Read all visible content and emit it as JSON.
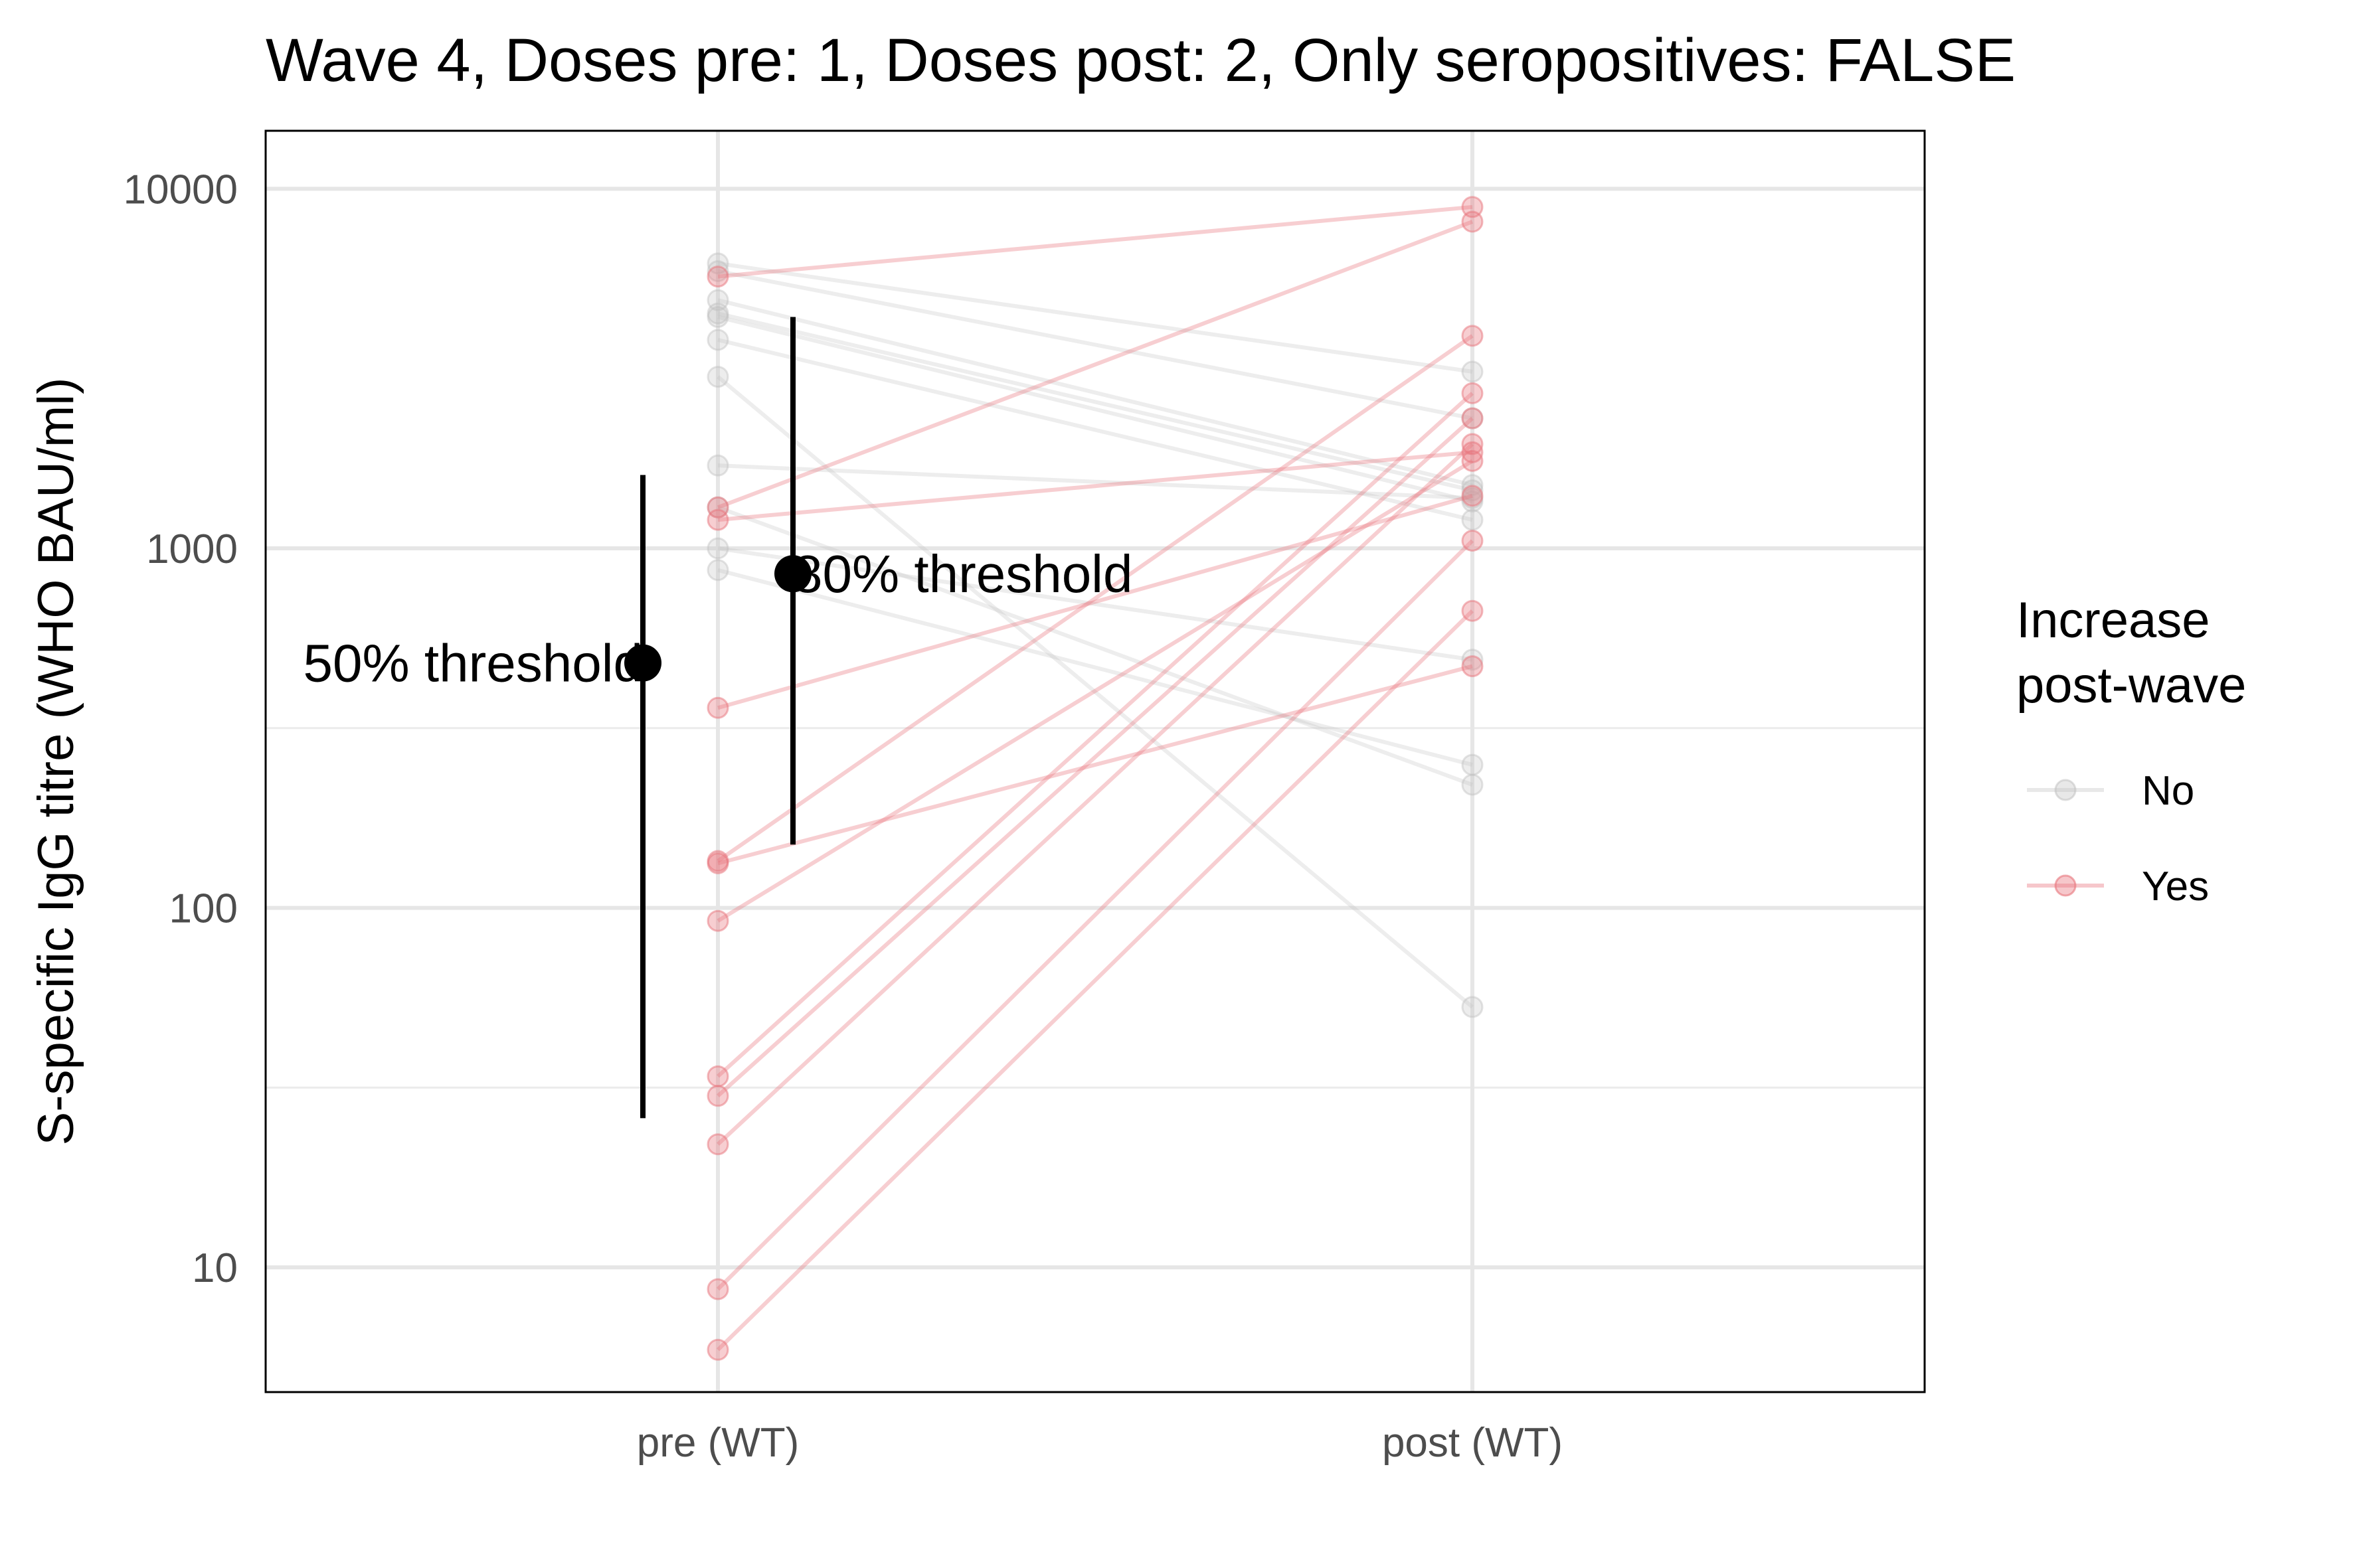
{
  "chart_data": {
    "type": "line",
    "title": "Wave 4, Doses pre: 1, Doses post: 2, Only seropositives: FALSE",
    "ylabel": "S-specific IgG titre (WHO BAU/ml)",
    "xlabel": "",
    "y_scale": "log10",
    "ylim": [
      4.5,
      14500
    ],
    "y_ticks": [
      10,
      100,
      1000,
      10000
    ],
    "y_tick_labels": [
      "10",
      "100",
      "1000",
      "10000"
    ],
    "categories": [
      "pre (WT)",
      "post (WT)"
    ],
    "grid": true,
    "legend": {
      "title_line1": "Increase",
      "title_line2": "post-wave",
      "position": "right",
      "entries": [
        {
          "label": "No",
          "color": "#bdbdbd"
        },
        {
          "label": "Yes",
          "color": "#e8747c"
        }
      ]
    },
    "series": [
      {
        "increase": "No",
        "values": [
          6200,
          3100
        ]
      },
      {
        "increase": "No",
        "values": [
          5900,
          2300
        ]
      },
      {
        "increase": "No",
        "values": [
          4900,
          1500
        ]
      },
      {
        "increase": "No",
        "values": [
          4500,
          1450
        ]
      },
      {
        "increase": "No",
        "values": [
          4400,
          1350
        ]
      },
      {
        "increase": "No",
        "values": [
          3800,
          1200
        ]
      },
      {
        "increase": "No",
        "values": [
          3000,
          53
        ]
      },
      {
        "increase": "No",
        "values": [
          1700,
          1380
        ]
      },
      {
        "increase": "No",
        "values": [
          1000,
          490
        ]
      },
      {
        "increase": "No",
        "values": [
          870,
          250
        ]
      },
      {
        "increase": "No",
        "values": [
          1300,
          220
        ]
      },
      {
        "increase": "Yes",
        "values": [
          5700,
          8900
        ]
      },
      {
        "increase": "Yes",
        "values": [
          1300,
          8100
        ]
      },
      {
        "increase": "Yes",
        "values": [
          1200,
          1850
        ]
      },
      {
        "increase": "Yes",
        "values": [
          360,
          1400
        ]
      },
      {
        "increase": "Yes",
        "values": [
          135,
          3900
        ]
      },
      {
        "increase": "Yes",
        "values": [
          133,
          470
        ]
      },
      {
        "increase": "Yes",
        "values": [
          92,
          1750
        ]
      },
      {
        "increase": "Yes",
        "values": [
          34,
          2700
        ]
      },
      {
        "increase": "Yes",
        "values": [
          30,
          2300
        ]
      },
      {
        "increase": "Yes",
        "values": [
          22,
          1950
        ]
      },
      {
        "increase": "Yes",
        "values": [
          8.7,
          1050
        ]
      },
      {
        "increase": "Yes",
        "values": [
          5.9,
          670
        ]
      }
    ],
    "thresholds": [
      {
        "label": "50% threshold",
        "value": 480,
        "lower": 26,
        "upper": 1600
      },
      {
        "label": "80% threshold",
        "value": 850,
        "lower": 150,
        "upper": 4400
      }
    ]
  }
}
